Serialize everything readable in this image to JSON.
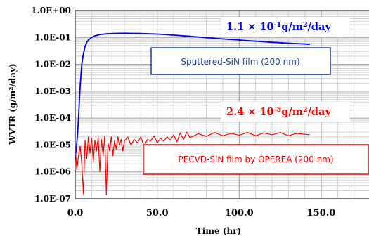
{
  "chart_data": {
    "type": "line",
    "xlabel": "Time (hr)",
    "ylabel": "WVTR (g/m²/day)",
    "x_ticks": [
      "0.0",
      "50.0",
      "100.0",
      "150.0"
    ],
    "y_ticks": [
      "1.0E+00",
      "1.0E-01",
      "1.0E-02",
      "1.0E-03",
      "1.0E-04",
      "1.0E-05",
      "1.0E-06",
      "1.0E-07"
    ],
    "xlim": [
      0,
      180
    ],
    "ylim": [
      1e-07,
      1
    ],
    "yscale": "log",
    "grid": true,
    "series": [
      {
        "name": "Sputtered-SiN film (200 nm)",
        "color": "#0000ff",
        "x": [
          0,
          0.5,
          1,
          1.5,
          2,
          2.5,
          3,
          3.5,
          4,
          5,
          6,
          7,
          8,
          10,
          12,
          15,
          20,
          25,
          30,
          35,
          40,
          50,
          60,
          70,
          80,
          90,
          100,
          110,
          120,
          130,
          140,
          143
        ],
        "y": [
          4e-06,
          6e-06,
          1.2e-05,
          3e-05,
          0.0001,
          0.0004,
          0.0015,
          0.004,
          0.01,
          0.025,
          0.045,
          0.065,
          0.08,
          0.1,
          0.115,
          0.128,
          0.138,
          0.142,
          0.143,
          0.142,
          0.14,
          0.133,
          0.122,
          0.11,
          0.098,
          0.088,
          0.08,
          0.072,
          0.066,
          0.061,
          0.057,
          0.055
        ]
      },
      {
        "name": "PECVD-SiN film by OPEREA (200 nm)",
        "color": "#ff0000",
        "x": [
          0,
          1,
          2,
          3,
          4,
          5,
          6,
          7,
          8,
          9,
          10,
          11,
          12,
          13,
          14,
          15,
          16,
          17,
          18,
          19,
          20,
          21,
          22,
          23,
          24,
          25,
          26,
          27,
          28,
          29,
          30,
          32,
          34,
          36,
          38,
          40,
          42,
          44,
          46,
          48,
          50,
          52,
          54,
          56,
          58,
          60,
          62,
          64,
          66,
          68,
          70,
          75,
          80,
          85,
          90,
          95,
          100,
          105,
          110,
          115,
          120,
          125,
          130,
          135,
          140,
          143
        ],
        "y": [
          8e-06,
          1.2e-06,
          4e-06,
          9e-06,
          2e-06,
          1.5e-07,
          1.5e-05,
          3e-06,
          2e-05,
          5e-06,
          1.8e-05,
          2.5e-06,
          1.5e-05,
          6e-06,
          2e-05,
          1e-06,
          1.6e-05,
          4e-06,
          2.2e-05,
          1.4e-07,
          1.2e-05,
          6e-06,
          2e-05,
          4e-06,
          1.5e-05,
          7e-06,
          2e-05,
          1e-05,
          1.6e-05,
          6e-06,
          1.4e-05,
          2e-05,
          1e-05,
          1.6e-05,
          1.2e-05,
          2e-05,
          9e-06,
          1.6e-05,
          1.4e-05,
          2.2e-05,
          1.2e-05,
          1.8e-05,
          1.4e-05,
          2e-05,
          1.5e-05,
          2.4e-05,
          1.3e-05,
          2.8e-05,
          1.6e-05,
          3e-05,
          1.9e-05,
          2.6e-05,
          2.1e-05,
          2.9e-05,
          2.2e-05,
          2.7e-05,
          2.3e-05,
          2.9e-05,
          2.2e-05,
          2.8e-05,
          2.4e-05,
          2.9e-05,
          2.2e-05,
          2.7e-05,
          2.5e-05,
          2.4e-05
        ]
      }
    ],
    "annotations": [
      {
        "text": "1.1 × 10",
        "sup": "-1",
        "suffix": "g/m",
        "sup2": "2",
        "suffix2": "/day",
        "color": "#0000ff"
      },
      {
        "text": "2.4 × 10",
        "sup": "-5",
        "suffix": "g/m",
        "sup2": "2",
        "suffix2": "/day",
        "color": "#ff0000"
      }
    ],
    "labels": [
      {
        "text": "Sputtered-SiN film (200 nm)",
        "color": "#1f3f9f"
      },
      {
        "text": "PECVD-SiN film by OPEREA (200 nm)",
        "color": "#ff0000"
      }
    ]
  }
}
